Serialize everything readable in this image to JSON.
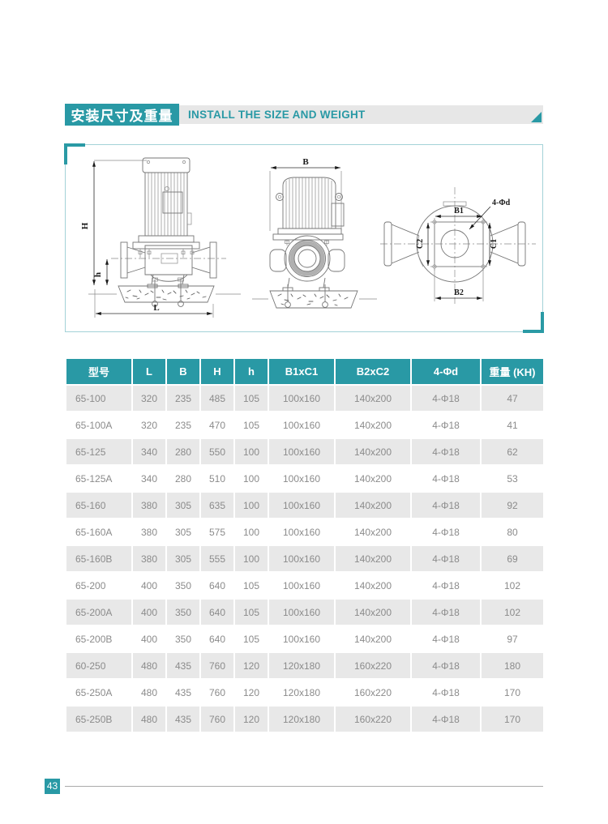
{
  "header": {
    "title_zh": "安装尺寸及重量",
    "title_en": "INSTALL THE SIZE AND WEIGHT"
  },
  "colors": {
    "teal": "#2999a5",
    "bar_gray": "#e7e7e7",
    "row_alt_gray": "#e8e8e8",
    "frame_light_teal": "#a3d2d8"
  },
  "diagram": {
    "labels": {
      "H": "H",
      "h": "h",
      "L": "L",
      "B": "B",
      "B1": "B1",
      "B2": "B2",
      "C1": "C1",
      "C2": "C2",
      "bolt": "4-Φd"
    }
  },
  "table": {
    "columns": [
      "型号",
      "L",
      "B",
      "H",
      "h",
      "B1xC1",
      "B2xC2",
      "4-Φd",
      "重量 (KH)"
    ],
    "rows": [
      [
        "65-100",
        "320",
        "235",
        "485",
        "105",
        "100x160",
        "140x200",
        "4-Φ18",
        "47"
      ],
      [
        "65-100A",
        "320",
        "235",
        "470",
        "105",
        "100x160",
        "140x200",
        "4-Φ18",
        "41"
      ],
      [
        "65-125",
        "340",
        "280",
        "550",
        "100",
        "100x160",
        "140x200",
        "4-Φ18",
        "62"
      ],
      [
        "65-125A",
        "340",
        "280",
        "510",
        "100",
        "100x160",
        "140x200",
        "4-Φ18",
        "53"
      ],
      [
        "65-160",
        "380",
        "305",
        "635",
        "100",
        "100x160",
        "140x200",
        "4-Φ18",
        "92"
      ],
      [
        "65-160A",
        "380",
        "305",
        "575",
        "100",
        "100x160",
        "140x200",
        "4-Φ18",
        "80"
      ],
      [
        "65-160B",
        "380",
        "305",
        "555",
        "100",
        "100x160",
        "140x200",
        "4-Φ18",
        "69"
      ],
      [
        "65-200",
        "400",
        "350",
        "640",
        "105",
        "100x160",
        "140x200",
        "4-Φ18",
        "102"
      ],
      [
        "65-200A",
        "400",
        "350",
        "640",
        "105",
        "100x160",
        "140x200",
        "4-Φ18",
        "102"
      ],
      [
        "65-200B",
        "400",
        "350",
        "640",
        "105",
        "100x160",
        "140x200",
        "4-Φ18",
        "97"
      ],
      [
        "60-250",
        "480",
        "435",
        "760",
        "120",
        "120x180",
        "160x220",
        "4-Φ18",
        "180"
      ],
      [
        "65-250A",
        "480",
        "435",
        "760",
        "120",
        "120x180",
        "160x220",
        "4-Φ18",
        "170"
      ],
      [
        "65-250B",
        "480",
        "435",
        "760",
        "120",
        "120x180",
        "160x220",
        "4-Φ18",
        "170"
      ]
    ]
  },
  "footer": {
    "page_number": "43"
  }
}
